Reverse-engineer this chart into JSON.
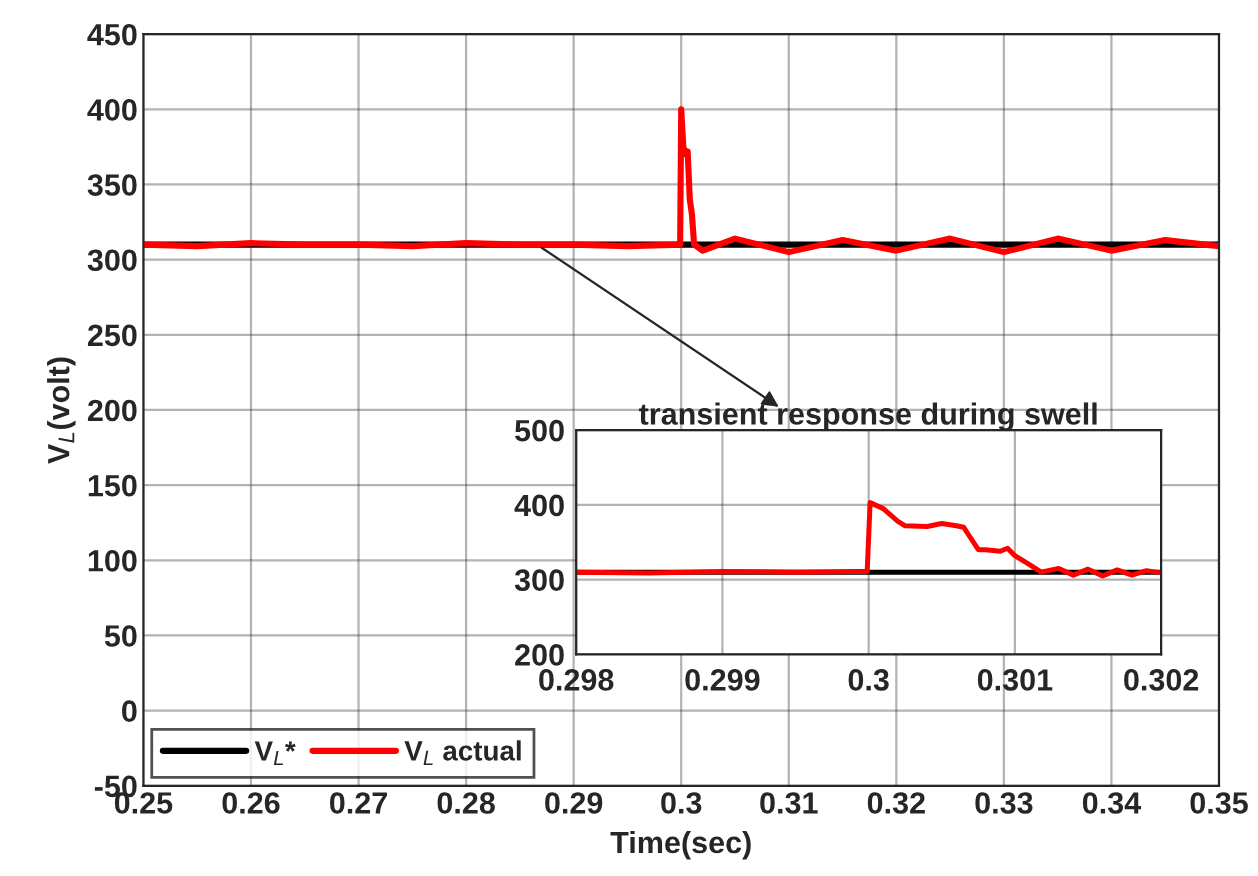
{
  "chart_data": [
    {
      "type": "line",
      "xlabel": "Time(sec)",
      "ylabel": "V$_{L}$(volt)",
      "xlim": [
        0.25,
        0.35
      ],
      "ylim": [
        -50,
        450
      ],
      "xticks": [
        0.25,
        0.26,
        0.27,
        0.28,
        0.29,
        0.3,
        0.31,
        0.32,
        0.33,
        0.34,
        0.35
      ],
      "yticks": [
        -50,
        0,
        50,
        100,
        150,
        200,
        250,
        300,
        350,
        400,
        450
      ],
      "grid": true,
      "legend": "bottom left",
      "marker": "none",
      "line_style": "solid",
      "series": [
        {
          "name": "V$_{L}$*",
          "color": "#000000",
          "x": [
            0.25,
            0.35
          ],
          "values": [
            310,
            310
          ]
        },
        {
          "name": "V$_{L}$ actual",
          "color": "#ff0000",
          "x": [
            0.25,
            0.255,
            0.26,
            0.265,
            0.27,
            0.275,
            0.28,
            0.285,
            0.29,
            0.295,
            0.2999,
            0.3,
            0.3002,
            0.3004,
            0.3006,
            0.3008,
            0.301,
            0.3012,
            0.302,
            0.305,
            0.31,
            0.315,
            0.32,
            0.325,
            0.33,
            0.335,
            0.34,
            0.345,
            0.35
          ],
          "values": [
            310,
            309,
            311,
            310,
            310,
            309,
            311,
            310,
            310,
            309,
            310,
            400,
            375,
            370,
            372,
            340,
            330,
            310,
            306,
            314,
            305,
            313,
            306,
            314,
            305,
            314,
            306,
            313,
            309
          ]
        }
      ]
    },
    {
      "type": "line",
      "title": "transient response during swell",
      "xlim": [
        0.298,
        0.302
      ],
      "ylim": [
        200,
        500
      ],
      "xticks": [
        0.298,
        0.299,
        0.3,
        0.301,
        0.302
      ],
      "yticks": [
        200,
        300,
        400,
        500
      ],
      "grid": true,
      "marker": "none",
      "line_style": "solid",
      "series": [
        {
          "color": "#000000",
          "x": [
            0.298,
            0.302
          ],
          "values": [
            310,
            310
          ]
        },
        {
          "color": "#ff0000",
          "x": [
            0.298,
            0.2985,
            0.299,
            0.2995,
            0.2999,
            0.29999,
            0.30001,
            0.3001,
            0.3002,
            0.30025,
            0.3004,
            0.3005,
            0.3006,
            0.30065,
            0.3007,
            0.30075,
            0.3008,
            0.3009,
            0.30095,
            0.301,
            0.3011,
            0.30118,
            0.3013,
            0.3014,
            0.3015,
            0.3016,
            0.3017,
            0.3018,
            0.3019,
            0.302
          ],
          "values": [
            310,
            309,
            311,
            310,
            311,
            311,
            403,
            395,
            378,
            372,
            371,
            375,
            372,
            370,
            355,
            340,
            340,
            338,
            342,
            332,
            320,
            310,
            315,
            306,
            314,
            305,
            313,
            306,
            312,
            309
          ]
        }
      ]
    }
  ]
}
